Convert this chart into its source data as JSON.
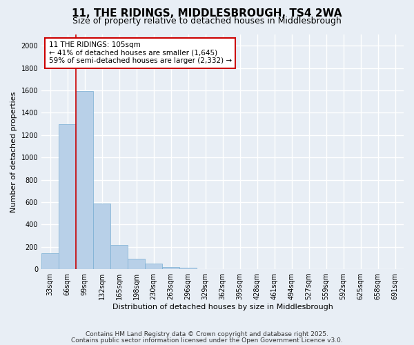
{
  "title_line1": "11, THE RIDINGS, MIDDLESBROUGH, TS4 2WA",
  "title_line2": "Size of property relative to detached houses in Middlesbrough",
  "xlabel": "Distribution of detached houses by size in Middlesbrough",
  "ylabel": "Number of detached properties",
  "categories": [
    "33sqm",
    "66sqm",
    "99sqm",
    "132sqm",
    "165sqm",
    "198sqm",
    "230sqm",
    "263sqm",
    "296sqm",
    "329sqm",
    "362sqm",
    "395sqm",
    "428sqm",
    "461sqm",
    "494sqm",
    "527sqm",
    "559sqm",
    "592sqm",
    "625sqm",
    "658sqm",
    "691sqm"
  ],
  "values": [
    140,
    1295,
    1595,
    585,
    218,
    95,
    50,
    22,
    12,
    0,
    0,
    0,
    0,
    0,
    0,
    0,
    0,
    0,
    0,
    0,
    0
  ],
  "bar_color": "#b8d0e8",
  "bar_edge_color": "#7aafd4",
  "vline_color": "#cc0000",
  "annotation_text": "11 THE RIDINGS: 105sqm\n← 41% of detached houses are smaller (1,645)\n59% of semi-detached houses are larger (2,332) →",
  "annotation_box_color": "#ffffff",
  "annotation_box_edge": "#cc0000",
  "ylim": [
    0,
    2100
  ],
  "yticks": [
    0,
    200,
    400,
    600,
    800,
    1000,
    1200,
    1400,
    1600,
    1800,
    2000
  ],
  "background_color": "#e8eef5",
  "grid_color": "#ffffff",
  "footer_line1": "Contains HM Land Registry data © Crown copyright and database right 2025.",
  "footer_line2": "Contains public sector information licensed under the Open Government Licence v3.0.",
  "title_fontsize": 11,
  "subtitle_fontsize": 9,
  "axis_label_fontsize": 8,
  "tick_fontsize": 7,
  "annotation_fontsize": 7.5,
  "footer_fontsize": 6.5
}
